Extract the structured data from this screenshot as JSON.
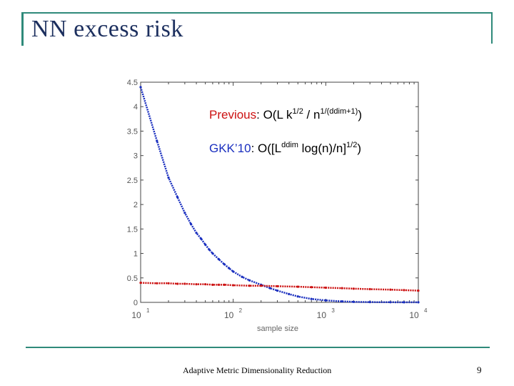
{
  "slide": {
    "title": "NN excess risk",
    "footer": "Adaptive Metric Dimensionality Reduction",
    "page_number": "9"
  },
  "chart_data": {
    "type": "scatter",
    "xlabel": "sample size",
    "x_scale": "log",
    "xlim": [
      10,
      10000
    ],
    "ylim": [
      0,
      4.5
    ],
    "x_ticks": [
      10,
      100,
      1000,
      10000
    ],
    "x_tick_labels": [
      {
        "base": "10",
        "exp": "1"
      },
      {
        "base": "10",
        "exp": "2"
      },
      {
        "base": "10",
        "exp": "3"
      },
      {
        "base": "10",
        "exp": "4"
      }
    ],
    "y_ticks": [
      "0",
      "0.5",
      "1",
      "1.5",
      "2",
      "2.5",
      "3",
      "3.5",
      "4",
      "4.5"
    ],
    "grid": false,
    "annotations": [
      {
        "prefix": "Previous",
        "prefix_color": "#cc1111",
        "text": ": O(L k",
        "sup1": "1/2",
        "mid": " / n",
        "sup2": "1/(ddim+1)",
        "suffix": ")"
      },
      {
        "prefix": "GKK’10",
        "prefix_color": "#1a2fbf",
        "text": ": O([L",
        "sup1": "ddim",
        "mid": " log(n)/n]",
        "sup2": "1/2",
        "suffix": ")"
      }
    ],
    "series": [
      {
        "color": "#1a2fbf",
        "x": [
          10,
          15,
          20,
          25,
          30,
          35,
          40,
          45,
          50,
          55,
          60,
          70,
          80,
          90,
          100,
          125,
          150,
          200,
          250,
          300,
          400,
          500,
          700,
          1000,
          1500,
          2000,
          3000,
          5000,
          7000,
          10000
        ],
        "y": [
          4.4,
          3.3,
          2.55,
          2.15,
          1.83,
          1.6,
          1.42,
          1.3,
          1.18,
          1.08,
          1.0,
          0.88,
          0.78,
          0.7,
          0.63,
          0.52,
          0.45,
          0.36,
          0.29,
          0.24,
          0.17,
          0.12,
          0.07,
          0.04,
          0.02,
          0.01,
          0.005,
          0.003,
          0.002,
          0.002
        ]
      },
      {
        "color": "#cc1111",
        "x": [
          10,
          15,
          20,
          25,
          30,
          40,
          50,
          60,
          70,
          80,
          100,
          150,
          200,
          300,
          500,
          700,
          1000,
          1500,
          2000,
          3000,
          5000,
          7000,
          10000
        ],
        "y": [
          0.4,
          0.39,
          0.39,
          0.38,
          0.38,
          0.37,
          0.37,
          0.36,
          0.36,
          0.36,
          0.35,
          0.34,
          0.34,
          0.33,
          0.32,
          0.31,
          0.3,
          0.29,
          0.28,
          0.27,
          0.26,
          0.25,
          0.24
        ]
      }
    ]
  }
}
